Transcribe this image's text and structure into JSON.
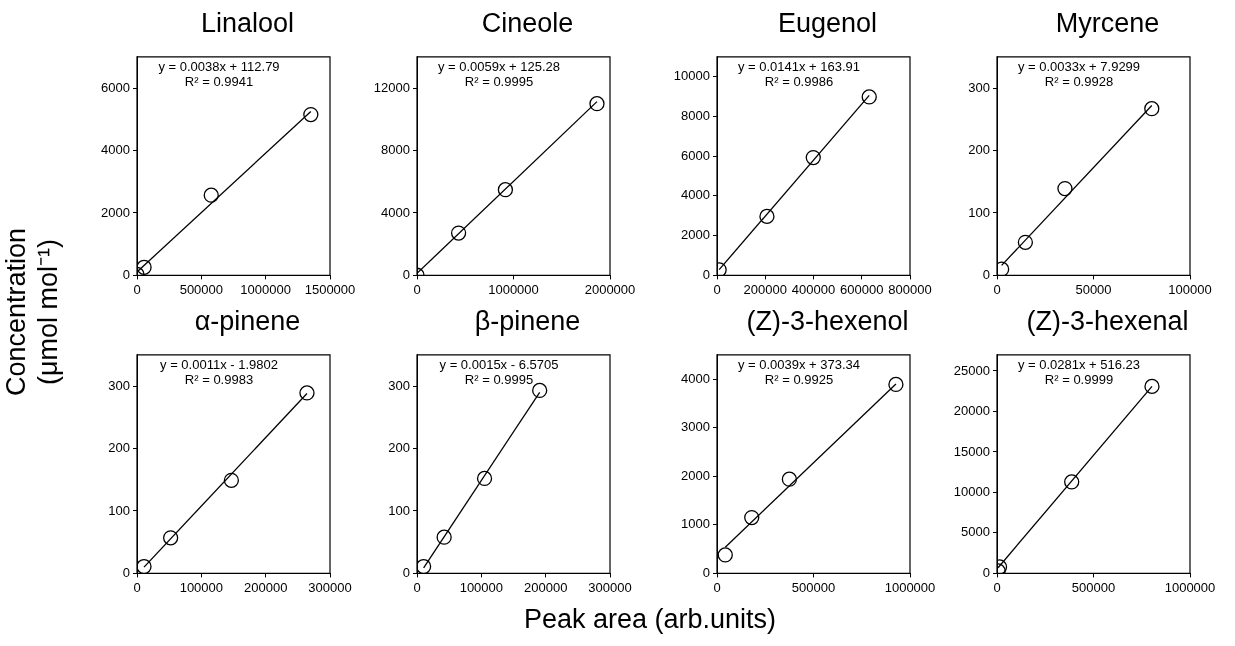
{
  "chart_data": [
    {
      "type": "scatter",
      "title": "Linalool",
      "ylabel": "Concentration\n(μmol mol⁻¹)",
      "xlim": [
        0,
        1500000
      ],
      "xticks": [
        0,
        500000,
        1000000,
        1500000
      ],
      "ylim": [
        0,
        7000
      ],
      "yticks": [
        0,
        2000,
        4000,
        6000
      ],
      "grid": false,
      "legend": false,
      "marker": "circle",
      "annotations": [
        "y = 0.0038x + 112.79",
        "R² = 0.9941"
      ],
      "series": [
        {
          "type": "scatter",
          "color": "#000000",
          "x": [
            0,
            55000,
            577000,
            1351000
          ],
          "values": [
            30,
            260,
            2570,
            5150
          ]
        },
        {
          "type": "line",
          "marker": "none",
          "color": "#000000",
          "x": [
            0,
            1351000
          ],
          "values": [
            110,
            5250
          ]
        }
      ]
    },
    {
      "type": "scatter",
      "title": "Cineole",
      "xlim": [
        0,
        2000000
      ],
      "xticks": [
        0,
        1000000,
        2000000
      ],
      "ylim": [
        0,
        14000
      ],
      "yticks": [
        0,
        4000,
        8000,
        12000
      ],
      "grid": false,
      "legend": false,
      "marker": "circle",
      "annotations": [
        "y = 0.0059x + 125.28",
        "R² = 0.9995"
      ],
      "series": [
        {
          "type": "scatter",
          "color": "#000000",
          "x": [
            0,
            431000,
            916000,
            1865000
          ],
          "values": [
            10,
            2710,
            5490,
            11000
          ]
        },
        {
          "type": "line",
          "marker": "none",
          "color": "#000000",
          "x": [
            0,
            1865000
          ],
          "values": [
            130,
            11130
          ]
        }
      ]
    },
    {
      "type": "scatter",
      "title": "Eugenol",
      "xlim": [
        0,
        800000
      ],
      "xticks": [
        0,
        200000,
        400000,
        600000,
        800000
      ],
      "ylim": [
        0,
        11000
      ],
      "yticks": [
        0,
        2000,
        4000,
        6000,
        8000,
        10000
      ],
      "grid": false,
      "legend": false,
      "marker": "circle",
      "annotations": [
        "y = 0.0141x + 163.91",
        "R² = 0.9986"
      ],
      "series": [
        {
          "type": "scatter",
          "color": "#000000",
          "x": [
            9000,
            207000,
            399000,
            631000
          ],
          "values": [
            280,
            2970,
            5930,
            8980
          ]
        },
        {
          "type": "line",
          "marker": "none",
          "color": "#000000",
          "x": [
            9000,
            631000
          ],
          "values": [
            290,
            9060
          ]
        }
      ]
    },
    {
      "type": "scatter",
      "title": "Myrcene",
      "xlim": [
        0,
        100000
      ],
      "xticks": [
        0,
        50000,
        100000
      ],
      "ylim": [
        0,
        350
      ],
      "yticks": [
        0,
        100,
        200,
        300
      ],
      "grid": false,
      "legend": false,
      "marker": "circle",
      "annotations": [
        "y = 0.0033x + 7.9299",
        "R² = 0.9928"
      ],
      "series": [
        {
          "type": "scatter",
          "color": "#000000",
          "x": [
            2400,
            14700,
            35200,
            80200
          ],
          "values": [
            10,
            53,
            139,
            267
          ]
        },
        {
          "type": "line",
          "marker": "none",
          "color": "#000000",
          "x": [
            2400,
            80200
          ],
          "values": [
            16,
            272
          ]
        }
      ]
    },
    {
      "type": "scatter",
      "title": "α-pinene",
      "xlim": [
        0,
        300000
      ],
      "xticks": [
        0,
        100000,
        200000,
        300000
      ],
      "ylim": [
        0,
        350
      ],
      "yticks": [
        0,
        100,
        200,
        300
      ],
      "grid": false,
      "legend": false,
      "marker": "circle",
      "annotations": [
        "y = 0.0011x - 1.9802",
        "R² = 0.9983"
      ],
      "series": [
        {
          "type": "scatter",
          "color": "#000000",
          "x": [
            10900,
            52300,
            146700,
            264200
          ],
          "values": [
            11,
            57,
            149,
            289
          ]
        },
        {
          "type": "line",
          "marker": "none",
          "color": "#000000",
          "x": [
            10900,
            264200
          ],
          "values": [
            10,
            288
          ]
        }
      ]
    },
    {
      "type": "scatter",
      "title": "β-pinene",
      "xlabel": "Peak area (arb.units)",
      "xlim": [
        0,
        300000
      ],
      "xticks": [
        0,
        100000,
        200000,
        300000
      ],
      "ylim": [
        0,
        350
      ],
      "yticks": [
        0,
        100,
        200,
        300
      ],
      "grid": false,
      "legend": false,
      "marker": "circle",
      "annotations": [
        "y = 0.0015x - 6.5705",
        "R² = 0.9995"
      ],
      "series": [
        {
          "type": "scatter",
          "color": "#000000",
          "x": [
            10300,
            42200,
            105000,
            190700
          ],
          "values": [
            11,
            58,
            152,
            293
          ]
        },
        {
          "type": "line",
          "marker": "none",
          "color": "#000000",
          "x": [
            10300,
            190700
          ],
          "values": [
            9,
            290
          ]
        }
      ]
    },
    {
      "type": "scatter",
      "title": "(Z)-3-hexenol",
      "xlim": [
        0,
        1000000
      ],
      "xticks": [
        0,
        500000,
        1000000
      ],
      "ylim": [
        0,
        4500
      ],
      "yticks": [
        0,
        1000,
        2000,
        3000,
        4000
      ],
      "grid": false,
      "legend": false,
      "marker": "circle",
      "annotations": [
        "y = 0.0039x + 373.34",
        "R² = 0.9925"
      ],
      "series": [
        {
          "type": "scatter",
          "color": "#000000",
          "x": [
            42800,
            180000,
            375000,
            927000
          ],
          "values": [
            380,
            1150,
            1940,
            3890
          ]
        },
        {
          "type": "line",
          "marker": "none",
          "color": "#000000",
          "x": [
            42800,
            927000
          ],
          "values": [
            540,
            3900
          ]
        }
      ]
    },
    {
      "type": "scatter",
      "title": "(Z)-3-hexenal",
      "xlim": [
        0,
        1000000
      ],
      "xticks": [
        0,
        500000,
        1000000
      ],
      "ylim": [
        0,
        27000
      ],
      "yticks": [
        0,
        5000,
        10000,
        15000,
        20000,
        25000
      ],
      "grid": false,
      "legend": false,
      "marker": "circle",
      "annotations": [
        "y = 0.0281x + 516.23",
        "R² = 0.9999"
      ],
      "series": [
        {
          "type": "scatter",
          "color": "#000000",
          "x": [
            5600,
            13000,
            387000,
            803000
          ],
          "values": [
            300,
            800,
            11300,
            23100
          ]
        },
        {
          "type": "line",
          "marker": "none",
          "color": "#000000",
          "x": [
            5600,
            803000
          ],
          "values": [
            700,
            23100
          ]
        }
      ]
    }
  ]
}
